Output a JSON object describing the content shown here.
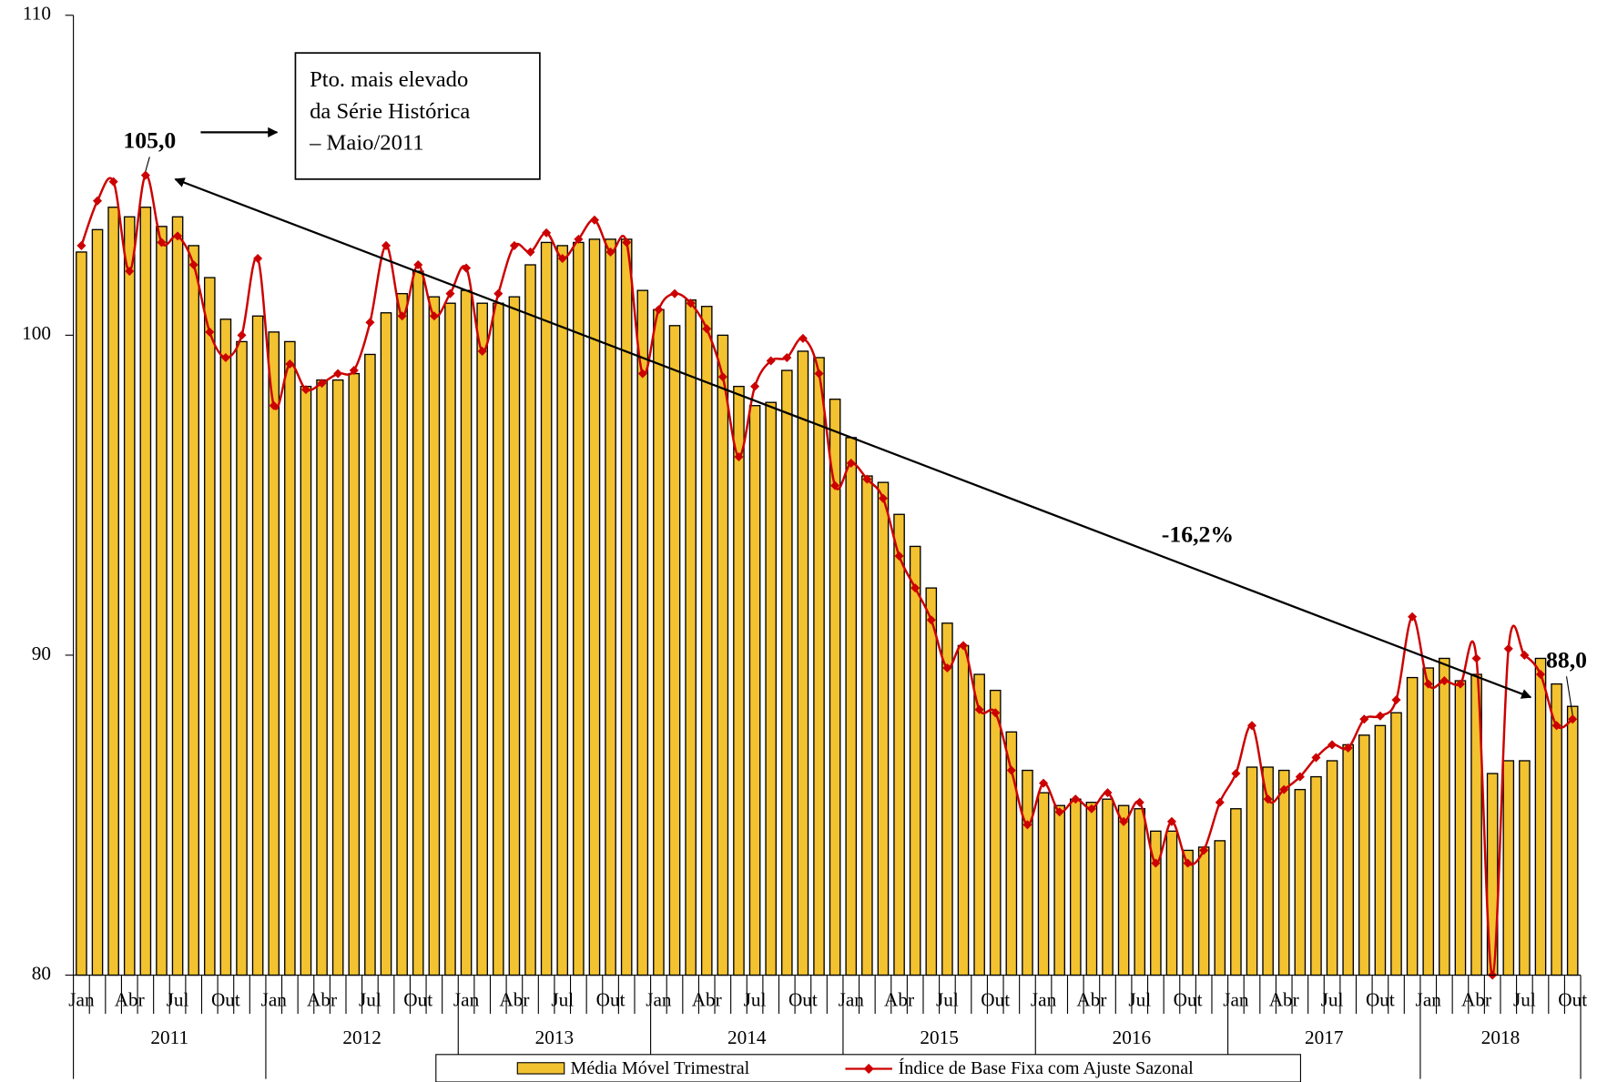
{
  "chart_data": {
    "type": "bar_line",
    "categories": [
      "Jan",
      null,
      null,
      "Abr",
      null,
      null,
      "Jul",
      null,
      null,
      "Out",
      null,
      null,
      "Jan",
      null,
      null,
      "Abr",
      null,
      null,
      "Jul",
      null,
      null,
      "Out",
      null,
      null,
      "Jan",
      null,
      null,
      "Abr",
      null,
      null,
      "Jul",
      null,
      null,
      "Out",
      null,
      null,
      "Jan",
      null,
      null,
      "Abr",
      null,
      null,
      "Jul",
      null,
      null,
      "Out",
      null,
      null,
      "Jan",
      null,
      null,
      "Abr",
      null,
      null,
      "Jul",
      null,
      null,
      "Out",
      null,
      null,
      "Jan",
      null,
      null,
      "Abr",
      null,
      null,
      "Jul",
      null,
      null,
      "Out",
      null,
      null,
      "Jan",
      null,
      null,
      "Abr",
      null,
      null,
      "Jul",
      null,
      null,
      "Out",
      null,
      null,
      "Jan",
      null,
      null,
      "Abr",
      null,
      null,
      "Jul",
      null,
      null,
      "Out"
    ],
    "year_labels": [
      "2011",
      "2012",
      "2013",
      "2014",
      "2015",
      "2016",
      "2017",
      "2018"
    ],
    "series": [
      {
        "name": "Média Móvel Trimestral",
        "type": "bar",
        "color": "#f2c230",
        "values": [
          102.6,
          103.3,
          104.0,
          103.7,
          104.0,
          103.4,
          103.7,
          102.8,
          101.8,
          100.5,
          99.8,
          100.6,
          100.1,
          99.8,
          98.4,
          98.6,
          98.6,
          98.8,
          99.4,
          100.7,
          101.3,
          102.0,
          101.2,
          101.0,
          101.4,
          101.0,
          101.0,
          101.2,
          102.2,
          102.9,
          102.8,
          102.9,
          103.0,
          103.0,
          103.0,
          101.4,
          100.8,
          100.3,
          101.1,
          100.9,
          100.0,
          98.4,
          97.8,
          97.9,
          98.9,
          99.5,
          99.3,
          98.0,
          96.8,
          95.6,
          95.4,
          94.4,
          93.4,
          92.1,
          91.0,
          90.3,
          89.4,
          88.9,
          87.6,
          86.4,
          85.7,
          85.3,
          85.5,
          85.4,
          85.5,
          85.3,
          85.2,
          84.5,
          84.5,
          83.9,
          84.0,
          84.2,
          85.2,
          86.5,
          86.5,
          86.4,
          85.8,
          86.2,
          86.7,
          87.2,
          87.5,
          87.8,
          88.2,
          89.3,
          89.6,
          89.9,
          89.2,
          89.4,
          86.3,
          86.7,
          86.7,
          89.9,
          89.1,
          88.4
        ]
      },
      {
        "name": "Índice de Base Fixa com Ajuste Sazonal",
        "type": "line",
        "color": "#cc0000",
        "values": [
          102.8,
          104.2,
          104.8,
          102.0,
          105.0,
          102.9,
          103.1,
          102.2,
          100.1,
          99.3,
          100.0,
          102.4,
          97.8,
          99.1,
          98.3,
          98.5,
          98.8,
          98.9,
          100.4,
          102.8,
          100.6,
          102.2,
          100.6,
          101.3,
          102.1,
          99.5,
          101.3,
          102.8,
          102.6,
          103.2,
          102.4,
          103.0,
          103.6,
          102.6,
          102.9,
          98.8,
          100.8,
          101.3,
          101.0,
          100.2,
          98.7,
          96.2,
          98.4,
          99.2,
          99.3,
          99.9,
          98.8,
          95.3,
          96.0,
          95.5,
          94.9,
          93.1,
          92.1,
          91.1,
          89.6,
          90.3,
          88.3,
          88.2,
          86.4,
          84.7,
          86.0,
          85.1,
          85.5,
          85.2,
          85.7,
          84.8,
          85.4,
          83.5,
          84.8,
          83.5,
          83.9,
          85.4,
          86.3,
          87.8,
          85.5,
          85.8,
          86.2,
          86.8,
          87.2,
          87.1,
          88.0,
          88.1,
          88.6,
          91.2,
          89.1,
          89.2,
          89.1,
          89.9,
          80.0,
          90.2,
          90.0,
          89.4,
          87.8,
          88.0
        ],
        "value_labels": [
          null,
          null,
          null,
          null,
          "105,0",
          null,
          null,
          null,
          null,
          null,
          null,
          null,
          null,
          null,
          null,
          null,
          null,
          null,
          null,
          null,
          null,
          null,
          null,
          null,
          null,
          null,
          null,
          null,
          null,
          null,
          null,
          null,
          null,
          null,
          null,
          null,
          null,
          null,
          null,
          null,
          null,
          null,
          null,
          null,
          null,
          null,
          null,
          null,
          null,
          null,
          null,
          null,
          null,
          null,
          null,
          null,
          null,
          null,
          null,
          null,
          null,
          null,
          null,
          null,
          null,
          null,
          null,
          null,
          null,
          null,
          null,
          null,
          null,
          null,
          null,
          null,
          null,
          null,
          null,
          null,
          null,
          null,
          null,
          null,
          null,
          null,
          null,
          null,
          null,
          null,
          null,
          null,
          null,
          "88,0"
        ]
      }
    ],
    "ylim": [
      80,
      110
    ],
    "yticks": [
      80,
      90,
      100,
      110
    ],
    "legend": "bottom",
    "annotation_box": [
      "Pto. mais elevado",
      "da Série Histórica",
      "– Maio/2011"
    ],
    "trend_label": "-16,2%"
  }
}
